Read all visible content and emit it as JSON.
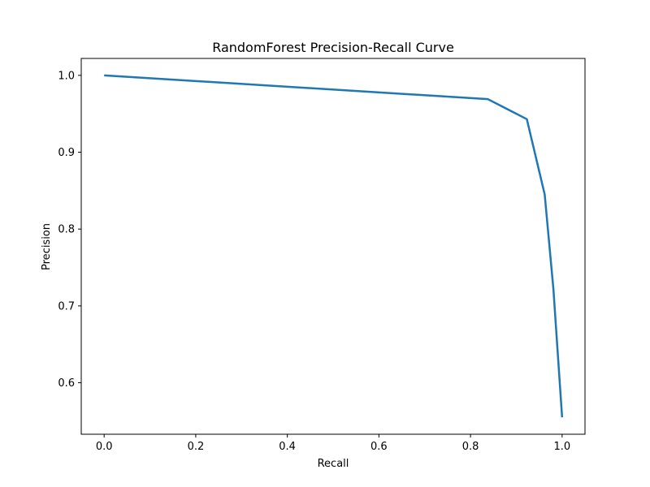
{
  "chart_data": {
    "type": "line",
    "title": "RandomForest Precision-Recall Curve",
    "xlabel": "Recall",
    "ylabel": "Precision",
    "xlim": [
      -0.05,
      1.05
    ],
    "ylim": [
      0.533,
      1.022
    ],
    "xticks": [
      0.0,
      0.2,
      0.4,
      0.6,
      0.8,
      1.0
    ],
    "xtick_labels": [
      "0.0",
      "0.2",
      "0.4",
      "0.6",
      "0.8",
      "1.0"
    ],
    "yticks": [
      0.6,
      0.7,
      0.8,
      0.9,
      1.0
    ],
    "ytick_labels": [
      "0.6",
      "0.7",
      "0.8",
      "0.9",
      "1.0"
    ],
    "grid": false,
    "legend": "none",
    "series": [
      {
        "color": "#1f77b4",
        "x": [
          0.0,
          0.838,
          0.923,
          0.962,
          0.981,
          1.0
        ],
        "y": [
          1.0,
          0.969,
          0.943,
          0.845,
          0.722,
          0.555
        ]
      }
    ]
  }
}
